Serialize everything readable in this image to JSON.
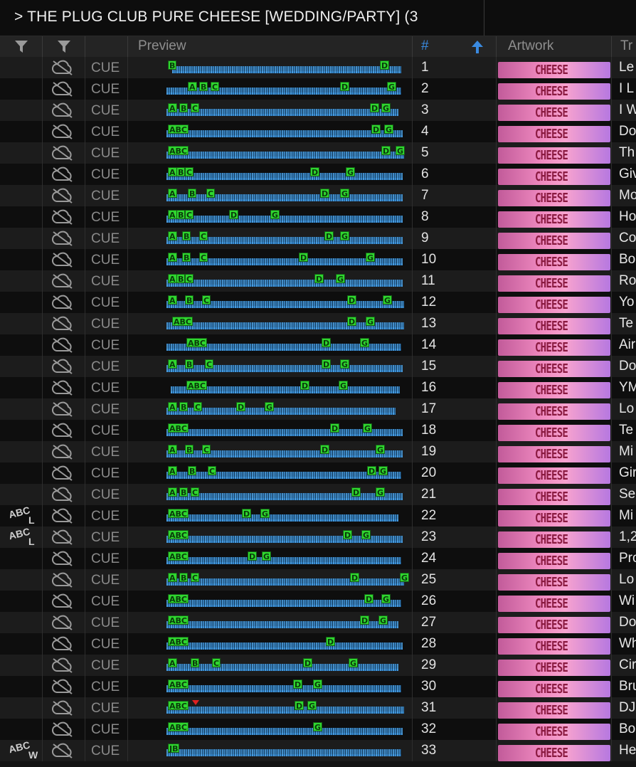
{
  "playlist": {
    "title": "> THE PLUG CLUB PURE CHEESE [WEDDING/PARTY] (3"
  },
  "header": {
    "filter_icon_1": "filter-icon",
    "filter_icon_2": "filter-icon",
    "preview": "Preview",
    "num": "#",
    "sort": "ascending",
    "artwork": "Artwork",
    "track": "Tr"
  },
  "colors": {
    "background": "#141414",
    "waveform": "#3d8fd4",
    "cue_marker": "#2fd62f",
    "artwork_pink": "#f08ac0"
  },
  "rows": [
    {
      "num": "1",
      "cue": "CUE",
      "art": "CHEESE",
      "name": "Le",
      "tag": "",
      "tag_sub": "",
      "markers": [
        {
          "l": "B",
          "x": 2
        },
        {
          "l": "D",
          "x": 300
        }
      ],
      "wave": [
        8,
        330
      ]
    },
    {
      "num": "2",
      "cue": "CUE",
      "art": "CHEESE",
      "name": "I L",
      "tag": "",
      "tag_sub": "",
      "markers": [
        {
          "l": "A",
          "x": 30
        },
        {
          "l": "B",
          "x": 46
        },
        {
          "l": "C",
          "x": 62
        },
        {
          "l": "D",
          "x": 244
        },
        {
          "l": "G",
          "x": 310
        }
      ],
      "wave": [
        0,
        330
      ]
    },
    {
      "num": "3",
      "cue": "CUE",
      "art": "CHEESE",
      "name": "I W",
      "tag": "",
      "tag_sub": "",
      "markers": [
        {
          "l": "A",
          "x": 2
        },
        {
          "l": "B",
          "x": 18
        },
        {
          "l": "C",
          "x": 34
        },
        {
          "l": "D",
          "x": 286
        },
        {
          "l": "G",
          "x": 302
        }
      ],
      "wave": [
        0,
        326
      ]
    },
    {
      "num": "4",
      "cue": "CUE",
      "art": "CHEESE",
      "name": "Do",
      "tag": "",
      "tag_sub": "",
      "markers": [
        {
          "l": "ABC",
          "x": 2
        },
        {
          "l": "D",
          "x": 288
        },
        {
          "l": "G",
          "x": 306
        }
      ],
      "wave": [
        0,
        332
      ]
    },
    {
      "num": "5",
      "cue": "CUE",
      "art": "CHEESE",
      "name": "Th",
      "tag": "",
      "tag_sub": "",
      "markers": [
        {
          "l": "ABC",
          "x": 2
        },
        {
          "l": "D",
          "x": 302
        },
        {
          "l": "G",
          "x": 322
        }
      ],
      "wave": [
        0,
        334
      ]
    },
    {
      "num": "6",
      "cue": "CUE",
      "art": "CHEESE",
      "name": "Giv",
      "tag": "",
      "tag_sub": "",
      "markers": [
        {
          "l": "A",
          "x": 2
        },
        {
          "l": "B",
          "x": 14
        },
        {
          "l": "C",
          "x": 26
        },
        {
          "l": "D",
          "x": 202
        },
        {
          "l": "G",
          "x": 252
        }
      ],
      "wave": [
        0,
        332
      ]
    },
    {
      "num": "7",
      "cue": "CUE",
      "art": "CHEESE",
      "name": "Mo",
      "tag": "",
      "tag_sub": "",
      "markers": [
        {
          "l": "A",
          "x": 2
        },
        {
          "l": "B",
          "x": 30
        },
        {
          "l": "C",
          "x": 56
        },
        {
          "l": "D",
          "x": 216
        },
        {
          "l": "G",
          "x": 244
        }
      ],
      "wave": [
        0,
        332
      ]
    },
    {
      "num": "8",
      "cue": "CUE",
      "art": "CHEESE",
      "name": "Ho",
      "tag": "",
      "tag_sub": "",
      "markers": [
        {
          "l": "A",
          "x": 2
        },
        {
          "l": "B",
          "x": 14
        },
        {
          "l": "C",
          "x": 26
        },
        {
          "l": "D",
          "x": 88
        },
        {
          "l": "G",
          "x": 146
        }
      ],
      "wave": [
        0,
        332
      ]
    },
    {
      "num": "9",
      "cue": "CUE",
      "art": "CHEESE",
      "name": "Co",
      "tag": "",
      "tag_sub": "",
      "markers": [
        {
          "l": "A",
          "x": 2
        },
        {
          "l": "B",
          "x": 22
        },
        {
          "l": "C",
          "x": 46
        },
        {
          "l": "D",
          "x": 222
        },
        {
          "l": "G",
          "x": 244
        }
      ],
      "wave": [
        0,
        332
      ]
    },
    {
      "num": "10",
      "cue": "CUE",
      "art": "CHEESE",
      "name": "Bo",
      "tag": "",
      "tag_sub": "",
      "markers": [
        {
          "l": "A",
          "x": 2
        },
        {
          "l": "B",
          "x": 22
        },
        {
          "l": "C",
          "x": 46
        },
        {
          "l": "D",
          "x": 186
        },
        {
          "l": "G",
          "x": 280
        }
      ],
      "wave": [
        0,
        332
      ]
    },
    {
      "num": "11",
      "cue": "CUE",
      "art": "CHEESE",
      "name": "Ro",
      "tag": "",
      "tag_sub": "",
      "markers": [
        {
          "l": "A",
          "x": 2
        },
        {
          "l": "B",
          "x": 14
        },
        {
          "l": "C",
          "x": 26
        },
        {
          "l": "D",
          "x": 208
        },
        {
          "l": "G",
          "x": 238
        }
      ],
      "wave": [
        0,
        332
      ]
    },
    {
      "num": "12",
      "cue": "CUE",
      "art": "CHEESE",
      "name": "Yo",
      "tag": "",
      "tag_sub": "",
      "markers": [
        {
          "l": "A",
          "x": 2
        },
        {
          "l": "B",
          "x": 26
        },
        {
          "l": "C",
          "x": 50
        },
        {
          "l": "D",
          "x": 254
        },
        {
          "l": "G",
          "x": 304
        }
      ],
      "wave": [
        0,
        334
      ]
    },
    {
      "num": "13",
      "cue": "CUE",
      "art": "CHEESE",
      "name": "Te",
      "tag": "",
      "tag_sub": "",
      "markers": [
        {
          "l": "ABC",
          "x": 8
        },
        {
          "l": "D",
          "x": 254
        },
        {
          "l": "G",
          "x": 280
        }
      ],
      "wave": [
        0,
        334
      ]
    },
    {
      "num": "14",
      "cue": "CUE",
      "art": "CHEESE",
      "name": "Air",
      "tag": "",
      "tag_sub": "",
      "markers": [
        {
          "l": "ABC",
          "x": 28
        },
        {
          "l": "D",
          "x": 218
        },
        {
          "l": "G",
          "x": 272
        }
      ],
      "wave": [
        0,
        330
      ]
    },
    {
      "num": "15",
      "cue": "CUE",
      "art": "CHEESE",
      "name": "Do",
      "tag": "",
      "tag_sub": "",
      "markers": [
        {
          "l": "A",
          "x": 2
        },
        {
          "l": "B",
          "x": 26
        },
        {
          "l": "C",
          "x": 54
        },
        {
          "l": "D",
          "x": 218
        },
        {
          "l": "G",
          "x": 244
        }
      ],
      "wave": [
        0,
        332
      ]
    },
    {
      "num": "16",
      "cue": "CUE",
      "art": "CHEESE",
      "name": "YM",
      "tag": "",
      "tag_sub": "",
      "markers": [
        {
          "l": "ABC",
          "x": 28
        },
        {
          "l": "D",
          "x": 188
        },
        {
          "l": "G",
          "x": 242
        }
      ],
      "wave": [
        6,
        328
      ]
    },
    {
      "num": "17",
      "cue": "CUE",
      "art": "CHEESE",
      "name": "Lo",
      "tag": "",
      "tag_sub": "",
      "markers": [
        {
          "l": "A",
          "x": 2
        },
        {
          "l": "B",
          "x": 18
        },
        {
          "l": "C",
          "x": 38
        },
        {
          "l": "D",
          "x": 98
        },
        {
          "l": "G",
          "x": 138
        }
      ],
      "wave": [
        0,
        322
      ]
    },
    {
      "num": "18",
      "cue": "CUE",
      "art": "CHEESE",
      "name": "Te",
      "tag": "",
      "tag_sub": "",
      "markers": [
        {
          "l": "ABC",
          "x": 2
        },
        {
          "l": "D",
          "x": 230
        },
        {
          "l": "G",
          "x": 276
        }
      ],
      "wave": [
        0,
        332
      ]
    },
    {
      "num": "19",
      "cue": "CUE",
      "art": "CHEESE",
      "name": "Mi",
      "tag": "",
      "tag_sub": "",
      "markers": [
        {
          "l": "A",
          "x": 2
        },
        {
          "l": "B",
          "x": 26
        },
        {
          "l": "C",
          "x": 50
        },
        {
          "l": "D",
          "x": 216
        },
        {
          "l": "G",
          "x": 294
        }
      ],
      "wave": [
        0,
        332
      ]
    },
    {
      "num": "20",
      "cue": "CUE",
      "art": "CHEESE",
      "name": "Gir",
      "tag": "",
      "tag_sub": "",
      "markers": [
        {
          "l": "A",
          "x": 2
        },
        {
          "l": "B",
          "x": 30
        },
        {
          "l": "C",
          "x": 58
        },
        {
          "l": "D",
          "x": 282
        },
        {
          "l": "G",
          "x": 298
        }
      ],
      "wave": [
        0,
        330
      ]
    },
    {
      "num": "21",
      "cue": "CUE",
      "art": "CHEESE",
      "name": "Se",
      "tag": "",
      "tag_sub": "",
      "markers": [
        {
          "l": "A",
          "x": 2
        },
        {
          "l": "B",
          "x": 18
        },
        {
          "l": "C",
          "x": 34
        },
        {
          "l": "D",
          "x": 260
        },
        {
          "l": "G",
          "x": 294
        }
      ],
      "wave": [
        0,
        332
      ]
    },
    {
      "num": "22",
      "cue": "CUE",
      "art": "CHEESE",
      "name": "Mi",
      "tag": "ABC",
      "tag_sub": "L",
      "markers": [
        {
          "l": "ABC",
          "x": 2
        },
        {
          "l": "D",
          "x": 106
        },
        {
          "l": "G",
          "x": 132
        }
      ],
      "wave": [
        0,
        326
      ]
    },
    {
      "num": "23",
      "cue": "CUE",
      "art": "CHEESE",
      "name": "1,2",
      "tag": "ABC",
      "tag_sub": "L",
      "markers": [
        {
          "l": "ABC",
          "x": 2
        },
        {
          "l": "D",
          "x": 248
        },
        {
          "l": "G",
          "x": 274
        }
      ],
      "wave": [
        0,
        332
      ]
    },
    {
      "num": "24",
      "cue": "CUE",
      "art": "CHEESE",
      "name": "Pro",
      "tag": "",
      "tag_sub": "",
      "markers": [
        {
          "l": "ABC",
          "x": 2
        },
        {
          "l": "D",
          "x": 114
        },
        {
          "l": "G",
          "x": 134
        }
      ],
      "wave": [
        0,
        330
      ]
    },
    {
      "num": "25",
      "cue": "CUE",
      "art": "CHEESE",
      "name": "Lo",
      "tag": "",
      "tag_sub": "",
      "markers": [
        {
          "l": "A",
          "x": 2
        },
        {
          "l": "B",
          "x": 18
        },
        {
          "l": "C",
          "x": 34
        },
        {
          "l": "D",
          "x": 258
        },
        {
          "l": "G",
          "x": 328
        }
      ],
      "wave": [
        0,
        334
      ]
    },
    {
      "num": "26",
      "cue": "CUE",
      "art": "CHEESE",
      "name": "Wi",
      "tag": "",
      "tag_sub": "",
      "markers": [
        {
          "l": "ABC",
          "x": 2
        },
        {
          "l": "D",
          "x": 278
        },
        {
          "l": "G",
          "x": 302
        }
      ],
      "wave": [
        0,
        330
      ]
    },
    {
      "num": "27",
      "cue": "CUE",
      "art": "CHEESE",
      "name": "Do",
      "tag": "",
      "tag_sub": "",
      "markers": [
        {
          "l": "ABC",
          "x": 2
        },
        {
          "l": "D",
          "x": 272
        },
        {
          "l": "G",
          "x": 298
        }
      ],
      "wave": [
        0,
        326
      ]
    },
    {
      "num": "28",
      "cue": "CUE",
      "art": "CHEESE",
      "name": "Wh",
      "tag": "",
      "tag_sub": "",
      "markers": [
        {
          "l": "ABC",
          "x": 2
        },
        {
          "l": "D",
          "x": 224
        }
      ],
      "wave": [
        0,
        332
      ]
    },
    {
      "num": "29",
      "cue": "CUE",
      "art": "CHEESE",
      "name": "Cir",
      "tag": "",
      "tag_sub": "",
      "markers": [
        {
          "l": "A",
          "x": 2
        },
        {
          "l": "B",
          "x": 34
        },
        {
          "l": "C",
          "x": 64
        },
        {
          "l": "D",
          "x": 192
        },
        {
          "l": "G",
          "x": 256
        }
      ],
      "wave": [
        0,
        326
      ]
    },
    {
      "num": "30",
      "cue": "CUE",
      "art": "CHEESE",
      "name": "Bru",
      "tag": "",
      "tag_sub": "",
      "markers": [
        {
          "l": "ABC",
          "x": 2
        },
        {
          "l": "D",
          "x": 178
        },
        {
          "l": "G",
          "x": 206
        }
      ],
      "wave": [
        0,
        330
      ]
    },
    {
      "num": "31",
      "cue": "CUE",
      "art": "CHEESE",
      "name": "DJ",
      "tag": "",
      "tag_sub": "",
      "markers": [
        {
          "l": "ABC",
          "x": 2
        },
        {
          "l": "D",
          "x": 180
        },
        {
          "l": "G",
          "x": 198
        }
      ],
      "wave": [
        0,
        334
      ],
      "red": 36
    },
    {
      "num": "32",
      "cue": "CUE",
      "art": "CHEESE",
      "name": "Bo",
      "tag": "",
      "tag_sub": "",
      "markers": [
        {
          "l": "ABC",
          "x": 2
        },
        {
          "l": "G",
          "x": 206
        }
      ],
      "wave": [
        0,
        332
      ]
    },
    {
      "num": "33",
      "cue": "CUE",
      "art": "CHEESE",
      "name": "He",
      "tag": "ABC",
      "tag_sub": "W",
      "markers": [
        {
          "l": "JB",
          "x": 2
        }
      ],
      "wave": [
        0,
        330
      ]
    }
  ]
}
